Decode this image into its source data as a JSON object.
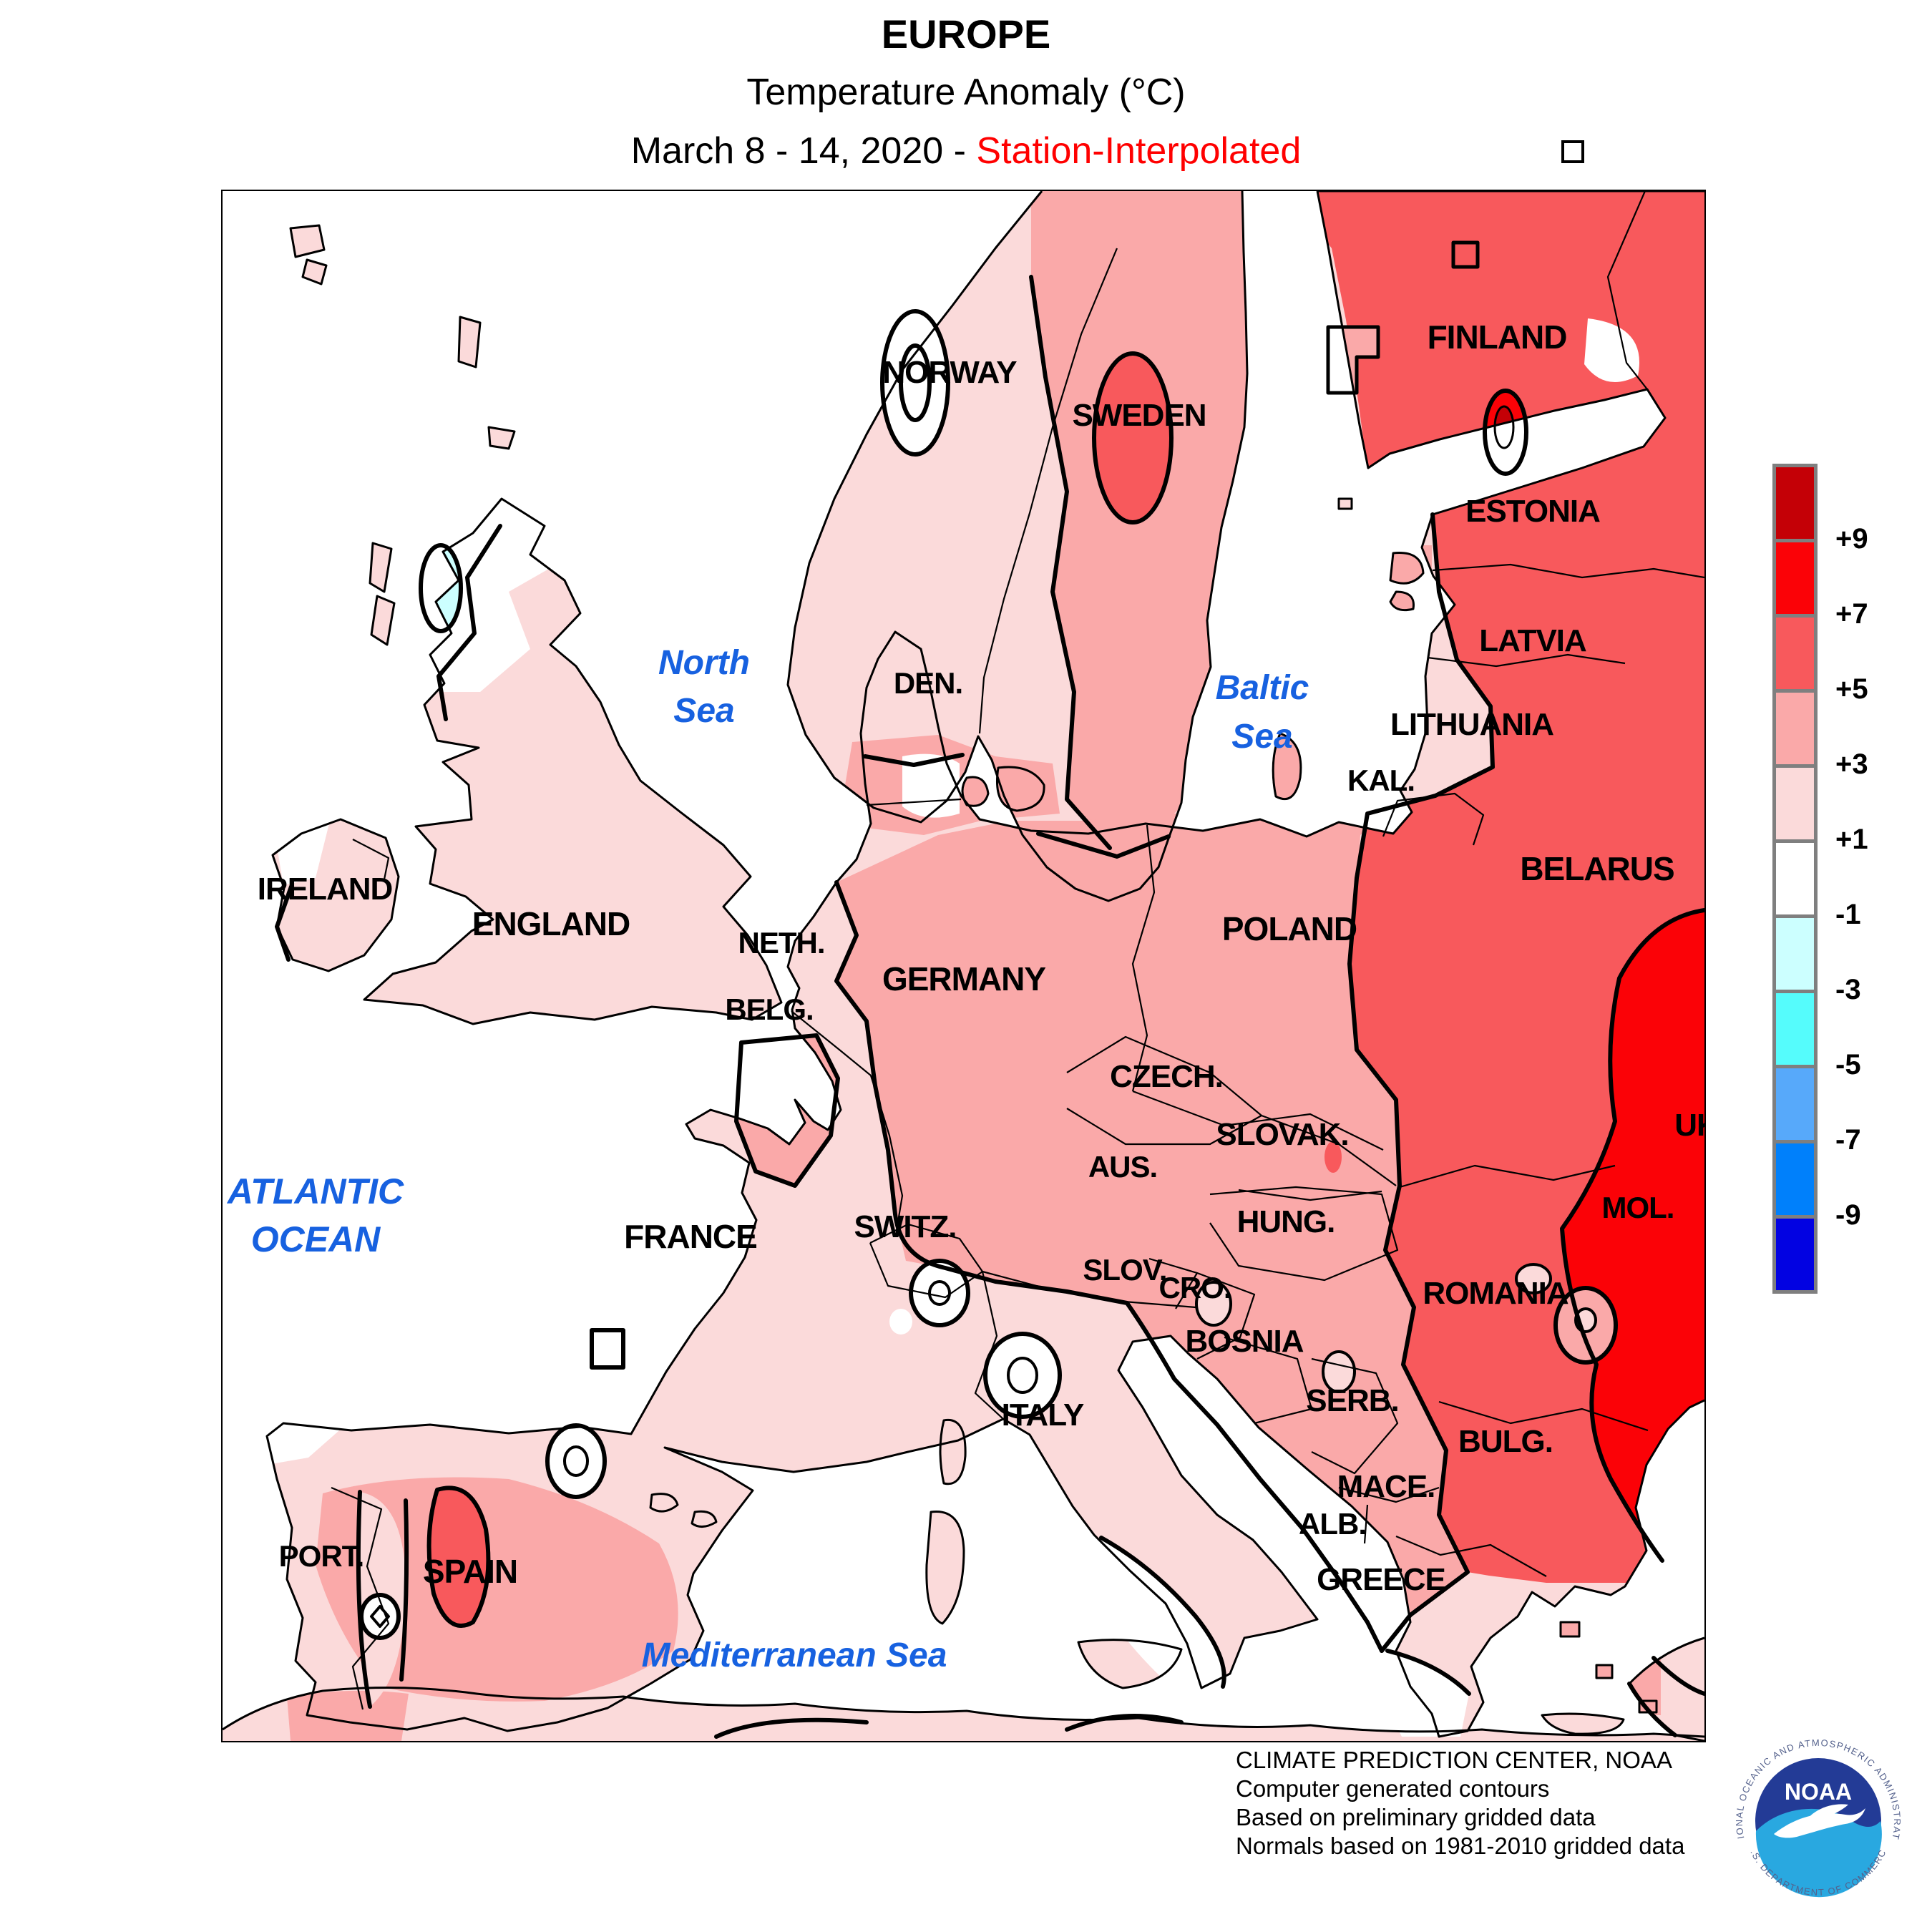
{
  "title": {
    "line1": "EUROPE",
    "line2": "Temperature Anomaly (°C)",
    "line3_black": "March 8 - 14, 2020 - ",
    "line3_red": "Station-Interpolated"
  },
  "palette": {
    "gt9": "#C40006",
    "p7_9": "#FB0207",
    "p5_7": "#F8595C",
    "p3_5": "#FAA9A9",
    "p1_3": "#FBDADA",
    "neutral": "#FFFFFF",
    "n1_3": "#CCFFFF",
    "n3_5": "#55FCFC",
    "n5_7": "#57A9FA",
    "n7_9": "#0080FB",
    "lt9": "#0202E2"
  },
  "colorbar": {
    "tick_labels": [
      "+9",
      "+7",
      "+5",
      "+3",
      "+1",
      "-1",
      "-3",
      "-5",
      "-7",
      "-9"
    ],
    "colors": [
      "#C40006",
      "#FB0207",
      "#F8595C",
      "#FAA9A9",
      "#FBDADA",
      "#FFFFFF",
      "#CCFFFF",
      "#55FCFC",
      "#57A9FA",
      "#0080FB",
      "#0202E2"
    ],
    "border_color": "#7F7F7F"
  },
  "map": {
    "sea_color": "#FFFFFF",
    "coast_color": "#000000",
    "sea_label_color": "#1761E0",
    "country_labels": [
      {
        "text": "NORWAY"
      },
      {
        "text": "SWEDEN"
      },
      {
        "text": "FINLAND"
      },
      {
        "text": "ESTONIA"
      },
      {
        "text": "LATVIA"
      },
      {
        "text": "LITHUANIA"
      },
      {
        "text": "KAL."
      },
      {
        "text": "BELARUS"
      },
      {
        "text": "POLAND"
      },
      {
        "text": "GERMANY"
      },
      {
        "text": "NETH."
      },
      {
        "text": "BELG."
      },
      {
        "text": "ENGLAND"
      },
      {
        "text": "IRELAND"
      },
      {
        "text": "CZECH."
      },
      {
        "text": "SLOVAK."
      },
      {
        "text": "AUS."
      },
      {
        "text": "HUNG."
      },
      {
        "text": "SWITZ."
      },
      {
        "text": "FRANCE"
      },
      {
        "text": "SLOV."
      },
      {
        "text": "CRO."
      },
      {
        "text": "BOSNIA"
      },
      {
        "text": "SERB."
      },
      {
        "text": "ITALY"
      },
      {
        "text": "ROMANIA"
      },
      {
        "text": "MOL."
      },
      {
        "text": "UK"
      },
      {
        "text": "BULG."
      },
      {
        "text": "MACE."
      },
      {
        "text": "ALB."
      },
      {
        "text": "GREECE"
      },
      {
        "text": "PORT."
      },
      {
        "text": "SPAIN"
      },
      {
        "text": "DEN."
      }
    ],
    "sea_labels": [
      {
        "text": "North"
      },
      {
        "text": "Sea"
      },
      {
        "text": "Baltic"
      },
      {
        "text": "Sea"
      },
      {
        "text": "ATLANTIC"
      },
      {
        "text": "OCEAN"
      },
      {
        "text": "Mediterranean Sea"
      }
    ]
  },
  "attribution": {
    "line1": "CLIMATE PREDICTION CENTER, NOAA",
    "line2": "Computer generated contours",
    "line3": "Based on preliminary gridded data",
    "line4": "Normals based on 1981-2010 gridded data"
  },
  "logo": {
    "name_text": "NOAA",
    "arc_top": "NATIONAL OCEANIC AND ATMOSPHERIC ADMINISTRATION",
    "arc_bottom": "U.S. DEPARTMENT OF COMMERCE",
    "dark_blue": "#233B96",
    "light_blue": "#29A8E0",
    "arc_text_color": "#54618C"
  }
}
